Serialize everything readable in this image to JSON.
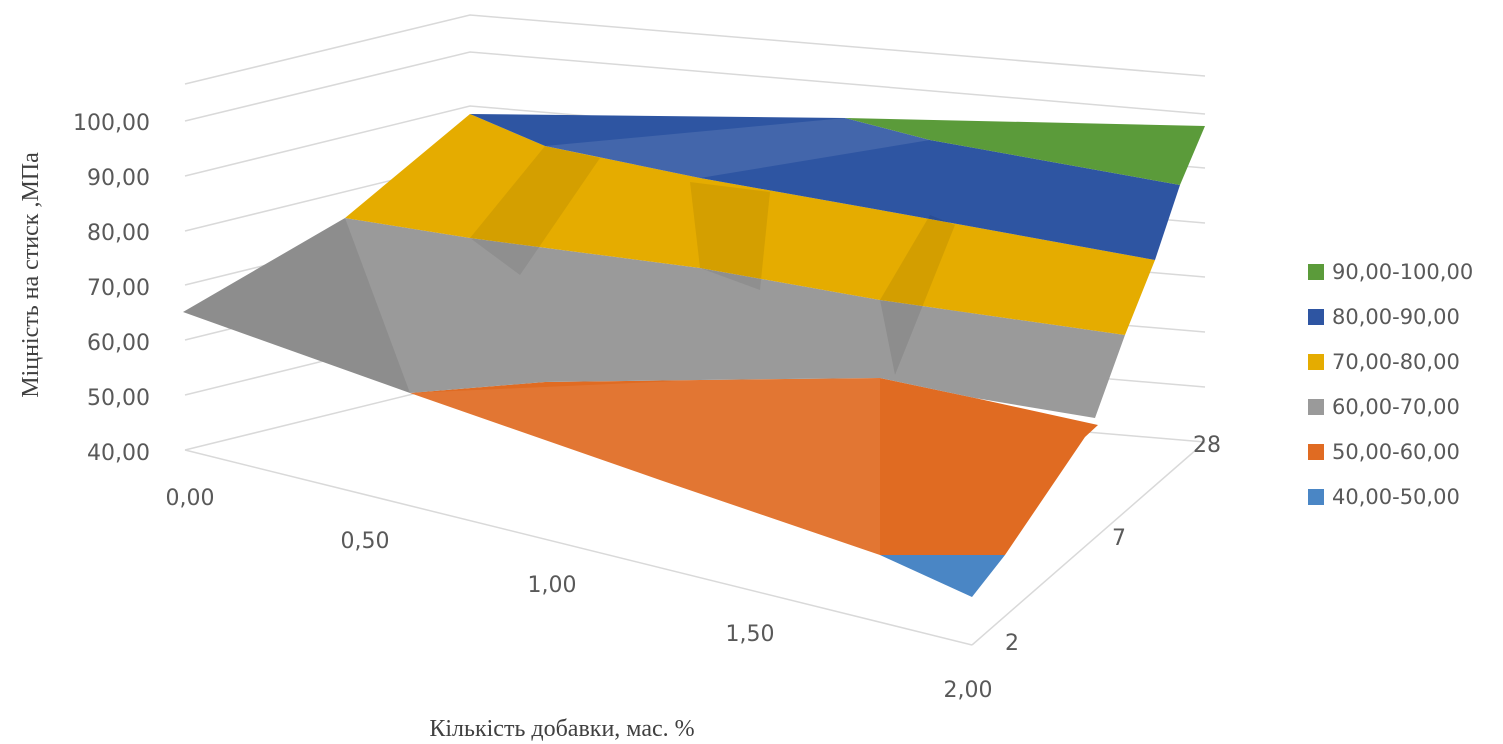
{
  "chart_data": {
    "type": "surface",
    "title": "",
    "xlabel": "Кількість добавки, мас. %",
    "ylabel": "Міцність  на стиск ,МПа",
    "x": [
      "0,00",
      "0,50",
      "1,00",
      "1,50",
      "2,00"
    ],
    "series_labels": [
      "2",
      "7",
      "28"
    ],
    "zlim": [
      40,
      100
    ],
    "z_ticks": [
      "40,00",
      "50,00",
      "60,00",
      "70,00",
      "80,00",
      "90,00",
      "100,00"
    ],
    "series": [
      {
        "name": "2",
        "values": [
          65,
          61,
          60,
          56,
          46
        ]
      },
      {
        "name": "7",
        "values": [
          72,
          71,
          71,
          69,
          65
        ]
      },
      {
        "name": "28",
        "values": [
          89,
          88,
          92,
          93,
          99
        ]
      }
    ],
    "legend": {
      "position": "right",
      "entries": [
        {
          "label": "90,00-100,00",
          "color": "#5b9b3a"
        },
        {
          "label": "80,00-90,00",
          "color": "#2e55a2"
        },
        {
          "label": "70,00-80,00",
          "color": "#e5ac00"
        },
        {
          "label": "60,00-70,00",
          "color": "#9a9a9a"
        },
        {
          "label": "50,00-60,00",
          "color": "#e06b22"
        },
        {
          "label": "40,00-50,00",
          "color": "#4a86c5"
        }
      ]
    }
  }
}
